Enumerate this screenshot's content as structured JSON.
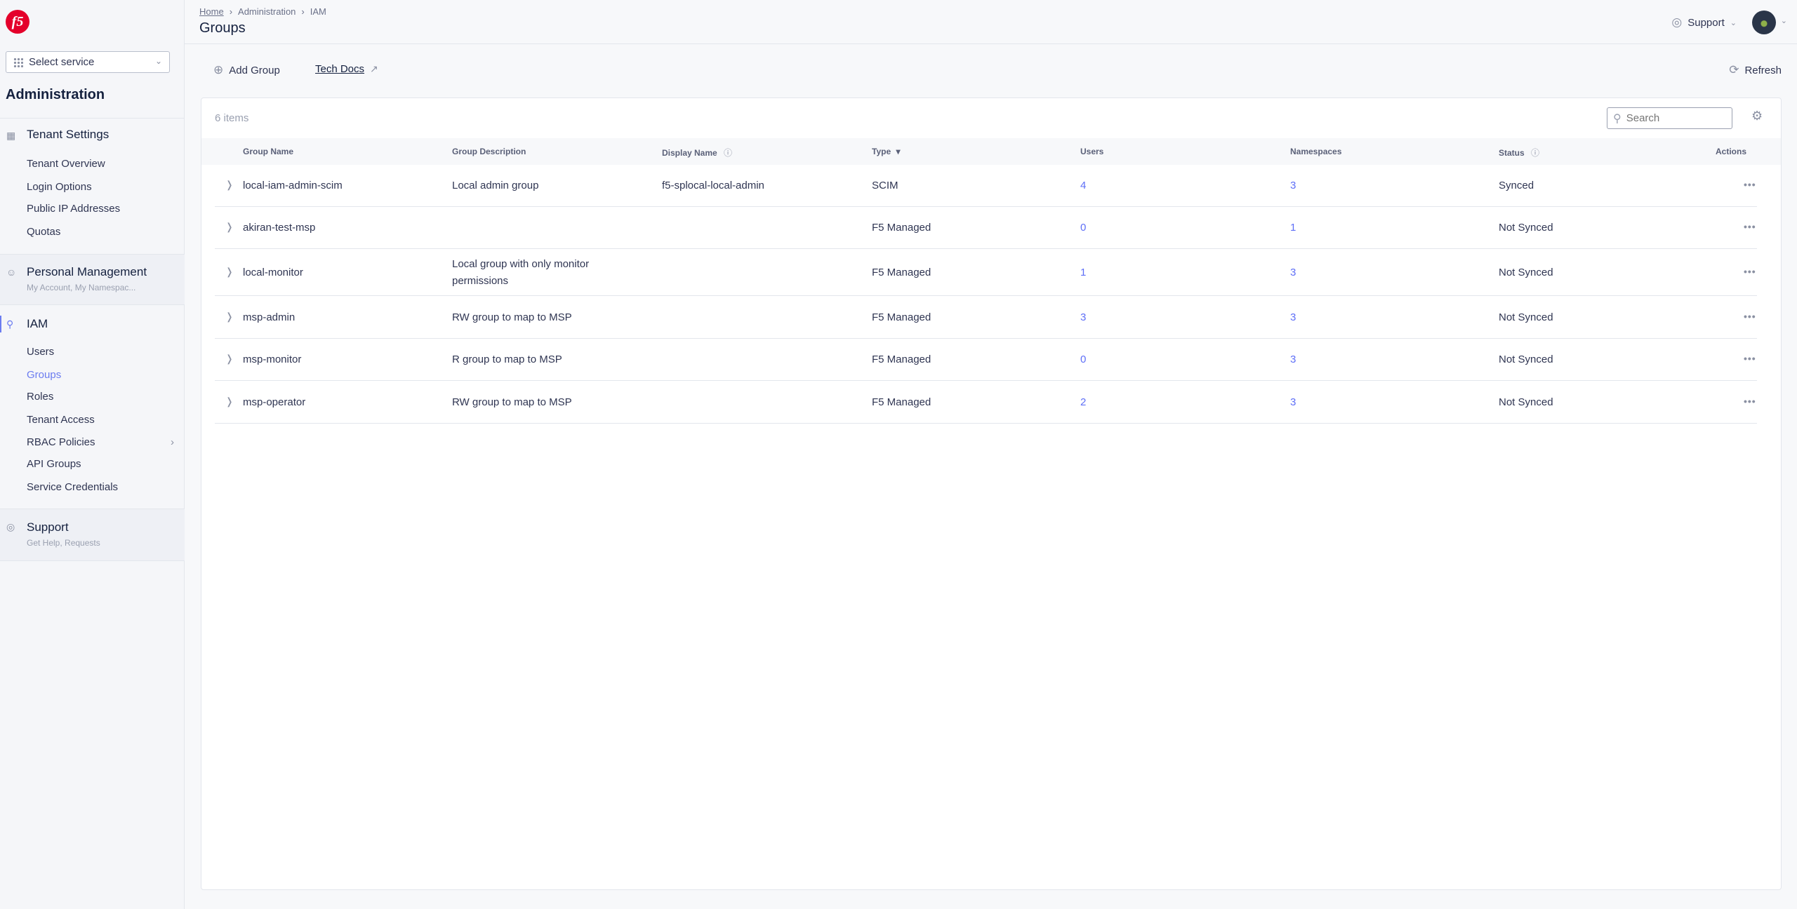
{
  "sidebar": {
    "logo_text": "f5",
    "select_service": "Select service",
    "section_title": "Administration",
    "tenant_settings": {
      "title": "Tenant Settings",
      "items": [
        "Tenant Overview",
        "Login Options",
        "Public IP Addresses",
        "Quotas"
      ]
    },
    "personal_management": {
      "title": "Personal Management",
      "subtitle": "My Account, My Namespac..."
    },
    "iam": {
      "title": "IAM",
      "items": [
        "Users",
        "Groups",
        "Roles",
        "Tenant Access",
        "RBAC Policies",
        "API Groups",
        "Service Credentials"
      ],
      "active": "Groups"
    },
    "support": {
      "title": "Support",
      "subtitle": "Get Help, Requests"
    }
  },
  "header": {
    "breadcrumb": [
      "Home",
      "Administration",
      "IAM"
    ],
    "title": "Groups",
    "support_label": "Support"
  },
  "toolbar": {
    "add_group": "Add Group",
    "tech_docs": "Tech Docs",
    "refresh": "Refresh"
  },
  "table": {
    "count": "6 items",
    "search_placeholder": "Search",
    "columns": [
      "Group Name",
      "Group Description",
      "Display Name",
      "Type",
      "Users",
      "Namespaces",
      "Status",
      "Actions"
    ],
    "rows": [
      {
        "name": "local-iam-admin-scim",
        "description": "Local admin group",
        "display_name": "f5-splocal-local-admin",
        "type": "SCIM",
        "users": "4",
        "namespaces": "3",
        "status": "Synced"
      },
      {
        "name": "akiran-test-msp",
        "description": "",
        "display_name": "",
        "type": "F5 Managed",
        "users": "0",
        "namespaces": "1",
        "status": "Not Synced"
      },
      {
        "name": "local-monitor",
        "description": "Local group with only monitor permissions",
        "display_name": "",
        "type": "F5 Managed",
        "users": "1",
        "namespaces": "3",
        "status": "Not Synced"
      },
      {
        "name": "msp-admin",
        "description": "RW group to map to MSP",
        "display_name": "",
        "type": "F5 Managed",
        "users": "3",
        "namespaces": "3",
        "status": "Not Synced"
      },
      {
        "name": "msp-monitor",
        "description": "R group to map to MSP",
        "display_name": "",
        "type": "F5 Managed",
        "users": "0",
        "namespaces": "3",
        "status": "Not Synced"
      },
      {
        "name": "msp-operator",
        "description": "RW group to map to MSP",
        "display_name": "",
        "type": "F5 Managed",
        "users": "2",
        "namespaces": "3",
        "status": "Not Synced"
      }
    ]
  },
  "colors": {
    "accent": "#5e6ff7",
    "brand": "#e4002b",
    "text": "#2f3552"
  }
}
